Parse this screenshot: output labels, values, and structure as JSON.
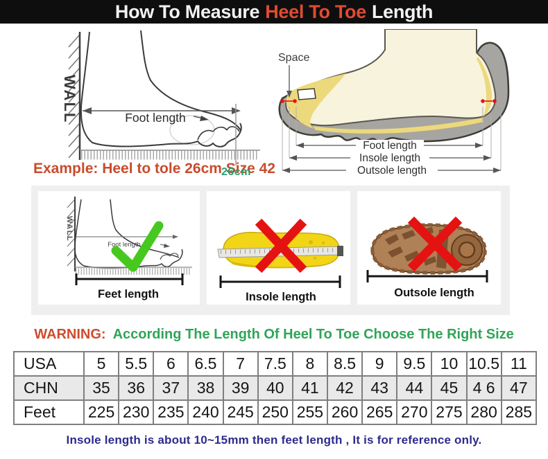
{
  "header": {
    "prefix": "How To Measure",
    "highlight": "Heel To Toe",
    "suffix": "Length"
  },
  "measure_guide": {
    "wall_label": "WALL",
    "foot_length_label": "Foot length",
    "example_text": "Example: Heel to tole 26cm Size 42",
    "example_value": "26cm"
  },
  "shoe_diagram": {
    "space_label": "Space",
    "foot_length_label": "Foot length",
    "insole_length_label": "Insole length",
    "outsole_length_label": "Outsole length"
  },
  "panels": {
    "feet": {
      "wall_label": "WALL",
      "inner_label": "Foot length",
      "caption": "Feet length",
      "mark": "check"
    },
    "insole": {
      "caption": "Insole length",
      "mark": "cross"
    },
    "outsole": {
      "caption": "Outsole length",
      "mark": "cross"
    }
  },
  "warning": {
    "label": "WARNING:",
    "message": "According The Length Of Heel To Toe Choose The Right Size"
  },
  "size_table": {
    "rows": [
      {
        "label": "USA",
        "values": [
          "5",
          "5.5",
          "6",
          "6.5",
          "7",
          "7.5",
          "8",
          "8.5",
          "9",
          "9.5",
          "10",
          "10.5",
          "11"
        ]
      },
      {
        "label": "CHN",
        "values": [
          "35",
          "36",
          "37",
          "38",
          "39",
          "40",
          "41",
          "42",
          "43",
          "44",
          "45",
          "4 6",
          "47"
        ]
      },
      {
        "label": "Feet",
        "values": [
          "225",
          "230",
          "235",
          "240",
          "245",
          "250",
          "255",
          "260",
          "265",
          "270",
          "275",
          "280",
          "285"
        ]
      }
    ]
  },
  "footer": {
    "note": "Insole length is about 10~15mm then feet length , It is for reference only."
  },
  "colors": {
    "header_bg": "#0e0e0e",
    "header_highlight": "#e14b31",
    "example_red": "#c94b2c",
    "measure_green": "#28a173",
    "warning_red": "#d04b2e",
    "warning_green": "#2fa557",
    "footer_navy": "#2c2b8d",
    "check_green": "#47c81f",
    "cross_red": "#e51212",
    "insole_yellow": "#f2d516",
    "outsole_brown": "#b08057",
    "strip_gray": "#efeff0"
  }
}
